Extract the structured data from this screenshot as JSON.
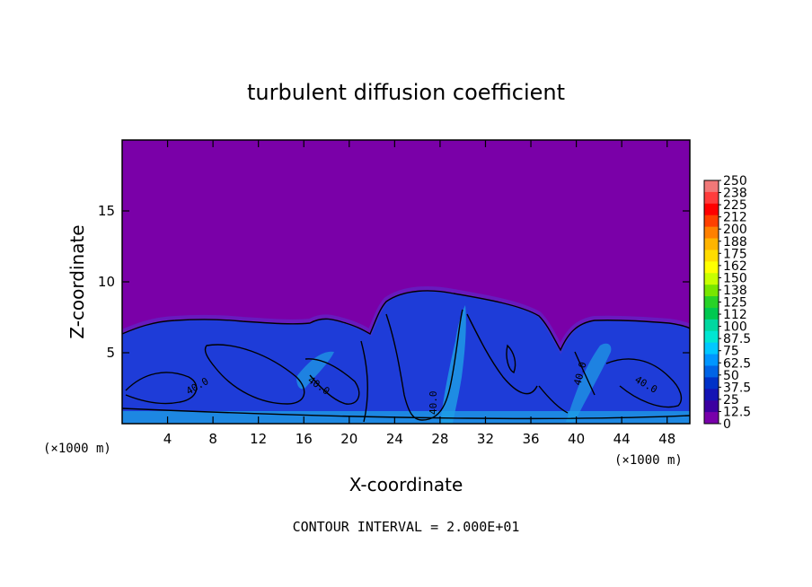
{
  "chart_data": {
    "type": "heatmap",
    "title": "turbulent diffusion coefficient",
    "xlabel": "X-coordinate",
    "ylabel": "Z-coordinate",
    "x_unit_left": "(×1000 m)",
    "x_unit_right": "(×1000 m)",
    "xlim": [
      0,
      50
    ],
    "ylim": [
      0,
      20
    ],
    "x_ticks": [
      4,
      8,
      12,
      16,
      20,
      24,
      28,
      32,
      36,
      40,
      44,
      48
    ],
    "y_ticks": [
      5,
      10,
      15
    ],
    "footer": "CONTOUR INTERVAL = 2.000E+01",
    "contour_labels": [
      "40.0",
      "40.0",
      "40.0",
      "40.0",
      "40.0"
    ],
    "colorbar": {
      "ticks": [
        "250",
        "238",
        "225",
        "212",
        "200",
        "188",
        "175",
        "162",
        "150",
        "138",
        "125",
        "112",
        "100",
        "87.5",
        "75",
        "62.5",
        "50",
        "37.5",
        "25",
        "12.5",
        "0"
      ],
      "colors": [
        "#f07878",
        "#ff3c3c",
        "#ff0000",
        "#ff4000",
        "#ff8000",
        "#ffb400",
        "#ffdc00",
        "#ffff00",
        "#c8ff00",
        "#78e600",
        "#28d228",
        "#00c850",
        "#00d8a0",
        "#00e6d2",
        "#00c8ff",
        "#0096ff",
        "#0064e6",
        "#0032c8",
        "#1414b4",
        "#3c00a0",
        "#7800aa"
      ]
    },
    "background_value_color": "#7a00a8",
    "field_color": "#1e3cd8",
    "contour_color": "#000000"
  }
}
